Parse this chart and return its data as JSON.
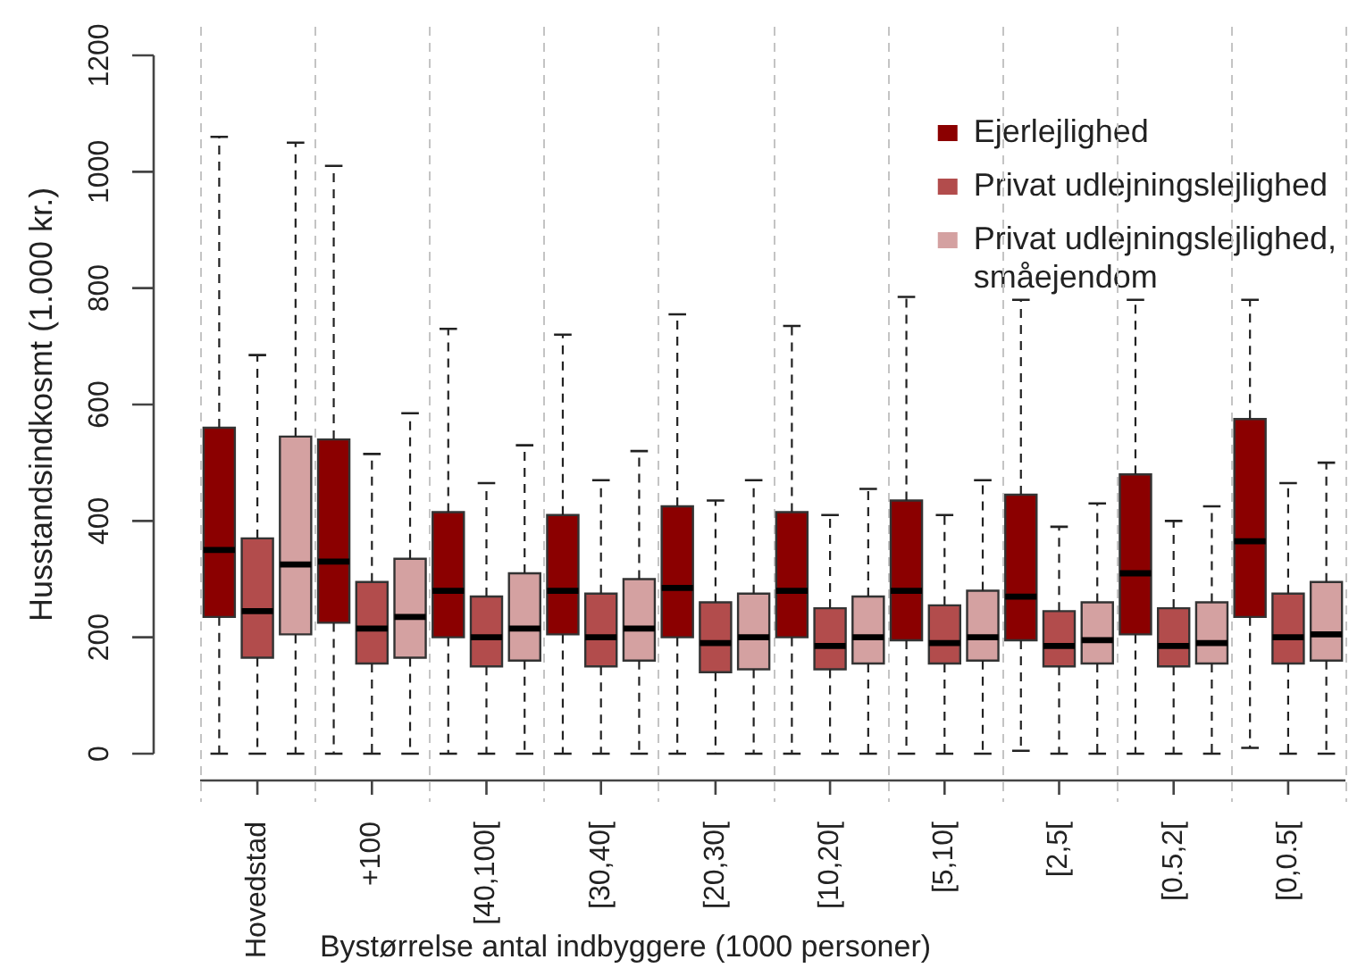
{
  "chart_data": {
    "type": "box",
    "xlabel": "Bystørrelse antal indbyggere (1000 personer)",
    "ylabel": "Husstandsindkosmt (1.000 kr.)",
    "categories": [
      "Hovedstad",
      "+100",
      "[40,100[",
      "[30,40[",
      "[20,30[",
      "[10,20[",
      "[5,10[",
      "[2,5[",
      "[0.5,2[",
      "[0,0.5["
    ],
    "series": [
      {
        "name": "Ejerlejlighed",
        "color": "#8b0000",
        "boxes": [
          {
            "low": 0,
            "q1": 235,
            "median": 350,
            "q3": 560,
            "high": 1060
          },
          {
            "low": 0,
            "q1": 225,
            "median": 330,
            "q3": 540,
            "high": 1010
          },
          {
            "low": 0,
            "q1": 200,
            "median": 280,
            "q3": 415,
            "high": 730
          },
          {
            "low": 0,
            "q1": 205,
            "median": 280,
            "q3": 410,
            "high": 720
          },
          {
            "low": 0,
            "q1": 200,
            "median": 285,
            "q3": 425,
            "high": 755
          },
          {
            "low": 0,
            "q1": 200,
            "median": 280,
            "q3": 415,
            "high": 735
          },
          {
            "low": 0,
            "q1": 195,
            "median": 280,
            "q3": 435,
            "high": 785
          },
          {
            "low": 5,
            "q1": 195,
            "median": 270,
            "q3": 445,
            "high": 780
          },
          {
            "low": 0,
            "q1": 205,
            "median": 310,
            "q3": 480,
            "high": 780
          },
          {
            "low": 10,
            "q1": 235,
            "median": 365,
            "q3": 575,
            "high": 780
          }
        ]
      },
      {
        "name": "Privat udlejningslejlighed",
        "color": "#b24c4c",
        "boxes": [
          {
            "low": 0,
            "q1": 165,
            "median": 245,
            "q3": 370,
            "high": 685
          },
          {
            "low": 0,
            "q1": 155,
            "median": 215,
            "q3": 295,
            "high": 515
          },
          {
            "low": 0,
            "q1": 150,
            "median": 200,
            "q3": 270,
            "high": 465
          },
          {
            "low": 0,
            "q1": 150,
            "median": 200,
            "q3": 275,
            "high": 470
          },
          {
            "low": 0,
            "q1": 140,
            "median": 190,
            "q3": 260,
            "high": 435
          },
          {
            "low": 0,
            "q1": 145,
            "median": 185,
            "q3": 250,
            "high": 410
          },
          {
            "low": 0,
            "q1": 155,
            "median": 190,
            "q3": 255,
            "high": 410
          },
          {
            "low": 0,
            "q1": 150,
            "median": 185,
            "q3": 245,
            "high": 390
          },
          {
            "low": 0,
            "q1": 150,
            "median": 185,
            "q3": 250,
            "high": 400
          },
          {
            "low": 0,
            "q1": 155,
            "median": 200,
            "q3": 275,
            "high": 465
          }
        ]
      },
      {
        "name": "Privat udlejningslejlighed, småejendom",
        "color": "#d4a1a1",
        "boxes": [
          {
            "low": 0,
            "q1": 205,
            "median": 325,
            "q3": 545,
            "high": 1050
          },
          {
            "low": 0,
            "q1": 165,
            "median": 235,
            "q3": 335,
            "high": 585
          },
          {
            "low": 0,
            "q1": 160,
            "median": 215,
            "q3": 310,
            "high": 530
          },
          {
            "low": 0,
            "q1": 160,
            "median": 215,
            "q3": 300,
            "high": 520
          },
          {
            "low": 0,
            "q1": 145,
            "median": 200,
            "q3": 275,
            "high": 470
          },
          {
            "low": 0,
            "q1": 155,
            "median": 200,
            "q3": 270,
            "high": 455
          },
          {
            "low": 0,
            "q1": 160,
            "median": 200,
            "q3": 280,
            "high": 470
          },
          {
            "low": 0,
            "q1": 155,
            "median": 195,
            "q3": 260,
            "high": 430
          },
          {
            "low": 0,
            "q1": 155,
            "median": 190,
            "q3": 260,
            "high": 425
          },
          {
            "low": 0,
            "q1": 160,
            "median": 205,
            "q3": 295,
            "high": 500
          }
        ]
      }
    ],
    "ylim": [
      0,
      1200
    ],
    "yticks": [
      0,
      200,
      400,
      600,
      800,
      1000,
      1200
    ],
    "grid": "x",
    "legend": "top right"
  }
}
